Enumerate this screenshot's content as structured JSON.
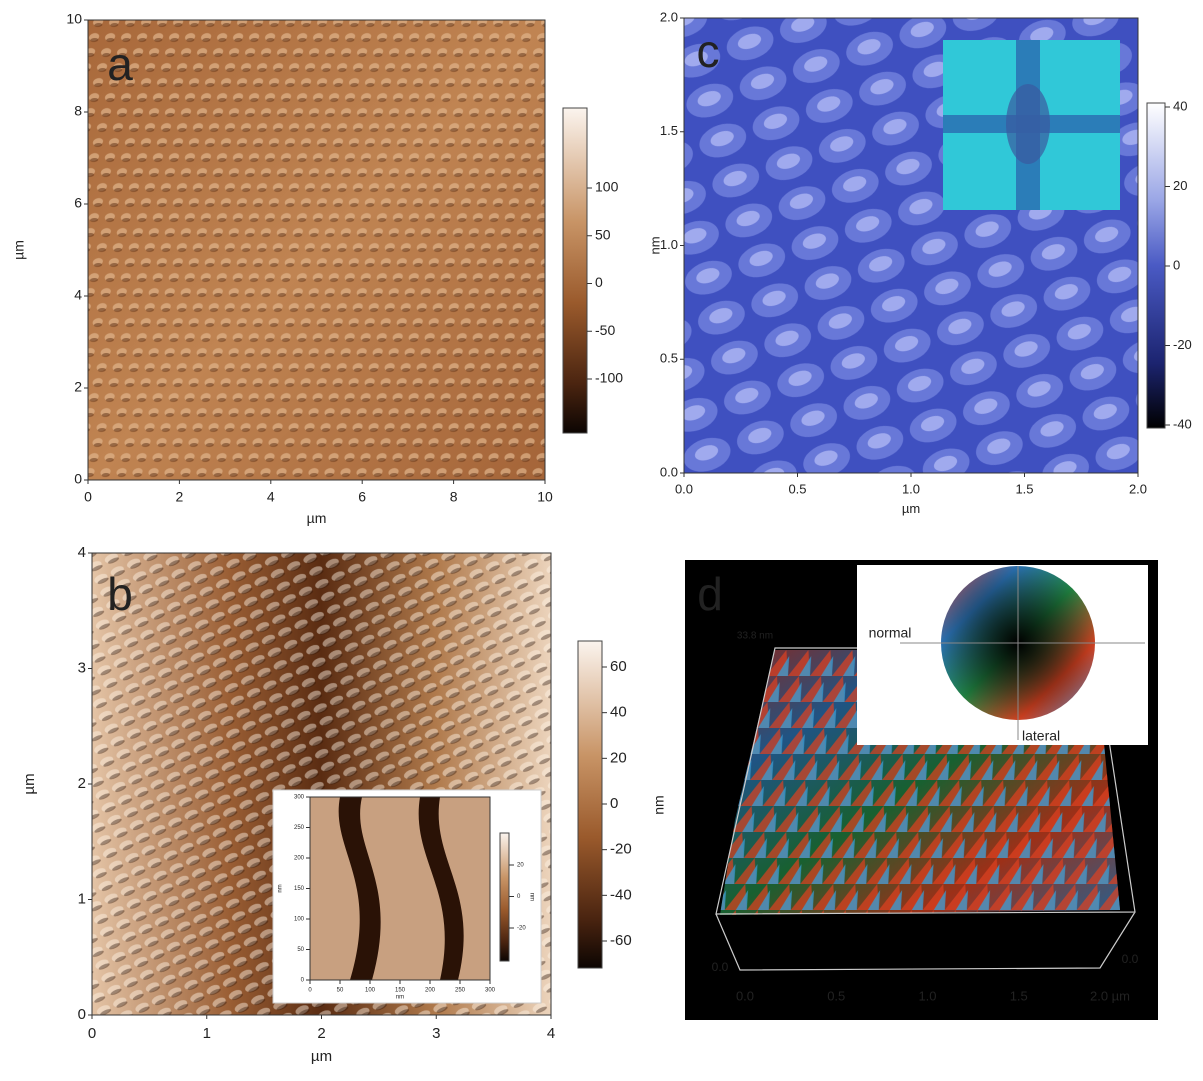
{
  "panels": [
    {
      "label": "a",
      "x_axis_title": "µm",
      "y_axis_title": "µm",
      "x_ticks": [
        "0",
        "2",
        "4",
        "6",
        "8",
        "10"
      ],
      "y_ticks": [
        "0",
        "2",
        "4",
        "6",
        "8",
        "10"
      ],
      "colorbar_ticks": [
        "100",
        "50",
        "0",
        "-50",
        "-100"
      ]
    },
    {
      "label": "b",
      "x_axis_title": "µm",
      "y_axis_title": "µm",
      "x_ticks": [
        "0",
        "1",
        "2",
        "3",
        "4"
      ],
      "y_ticks": [
        "0",
        "1",
        "2",
        "3",
        "4"
      ],
      "colorbar_ticks": [
        "60",
        "40",
        "20",
        "0",
        "-20",
        "-40",
        "-60"
      ],
      "inset": {
        "x_axis_title": "nm",
        "y_axis_title": "nm",
        "colorbar_title": "nm",
        "x_ticks": [
          "0",
          "50",
          "100",
          "150",
          "200",
          "250",
          "300"
        ],
        "y_ticks": [
          "0",
          "50",
          "100",
          "150",
          "200",
          "250",
          "300"
        ],
        "colorbar_ticks": [
          "20",
          "0",
          "-20"
        ]
      }
    },
    {
      "label": "c",
      "x_axis_title": "µm",
      "y_axis_title": "nm",
      "x_ticks": [
        "0.0",
        "0.5",
        "1.0",
        "1.5",
        "2.0"
      ],
      "y_ticks": [
        "0.0",
        "0.5",
        "1.0",
        "1.5",
        "2.0"
      ],
      "colorbar_ticks": [
        "40",
        "20",
        "0",
        "-20",
        "-40"
      ]
    },
    {
      "label": "d",
      "y_axis_title": "nm",
      "x_ticks": [
        "0.0",
        "0.5",
        "1.0",
        "1.5",
        "2.0 µm"
      ],
      "z_max_label": "33.8 nm",
      "left_tick": "0.0",
      "right_tick": "0.0",
      "legend_labels": [
        "normal",
        "lateral"
      ]
    }
  ]
}
